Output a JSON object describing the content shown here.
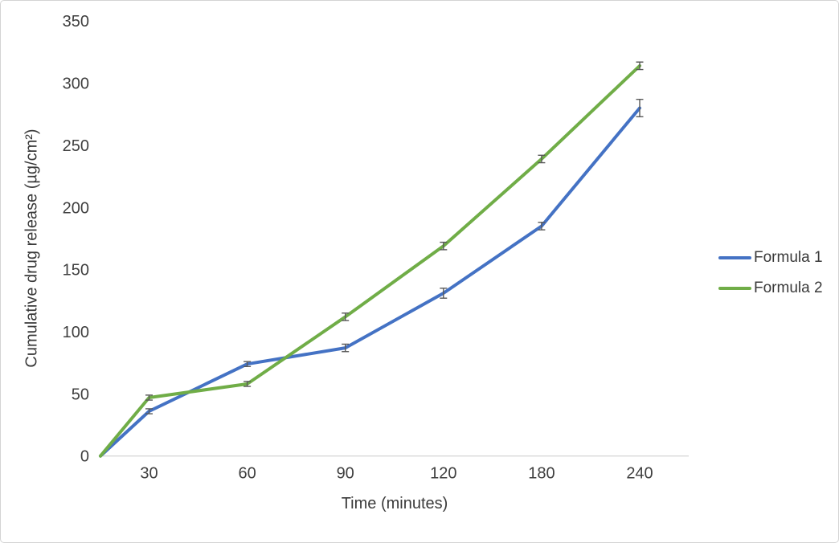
{
  "figure": {
    "background": "#ffffff",
    "border_color": "#d4d4d4"
  },
  "chart_data": {
    "type": "line",
    "title": "",
    "xlabel": "Time (minutes)",
    "ylabel": "Cumulative drug release (µg/cm²)",
    "x": [
      0,
      30,
      60,
      90,
      120,
      180,
      240
    ],
    "x_tick_labels": [
      "30",
      "60",
      "90",
      "120",
      "180",
      "240"
    ],
    "y_ticks": [
      0,
      50,
      100,
      150,
      200,
      250,
      300,
      350
    ],
    "ylim": [
      0,
      350
    ],
    "grid": false,
    "legend_position": "right",
    "axis_line_color": "#d9d9d9",
    "tick_label_color": "#3f3f3f",
    "error_bar_color": "#595959",
    "series": [
      {
        "name": "Formula 1",
        "color": "#4472c4",
        "values": [
          0,
          36,
          74,
          87,
          131,
          185,
          280
        ],
        "error": [
          0,
          2,
          2,
          3,
          4,
          3,
          7
        ]
      },
      {
        "name": "Formula 2",
        "color": "#70ad47",
        "values": [
          0,
          47,
          58,
          112,
          169,
          239,
          314
        ],
        "error": [
          0,
          2,
          2,
          3,
          3,
          3,
          3
        ]
      }
    ]
  }
}
